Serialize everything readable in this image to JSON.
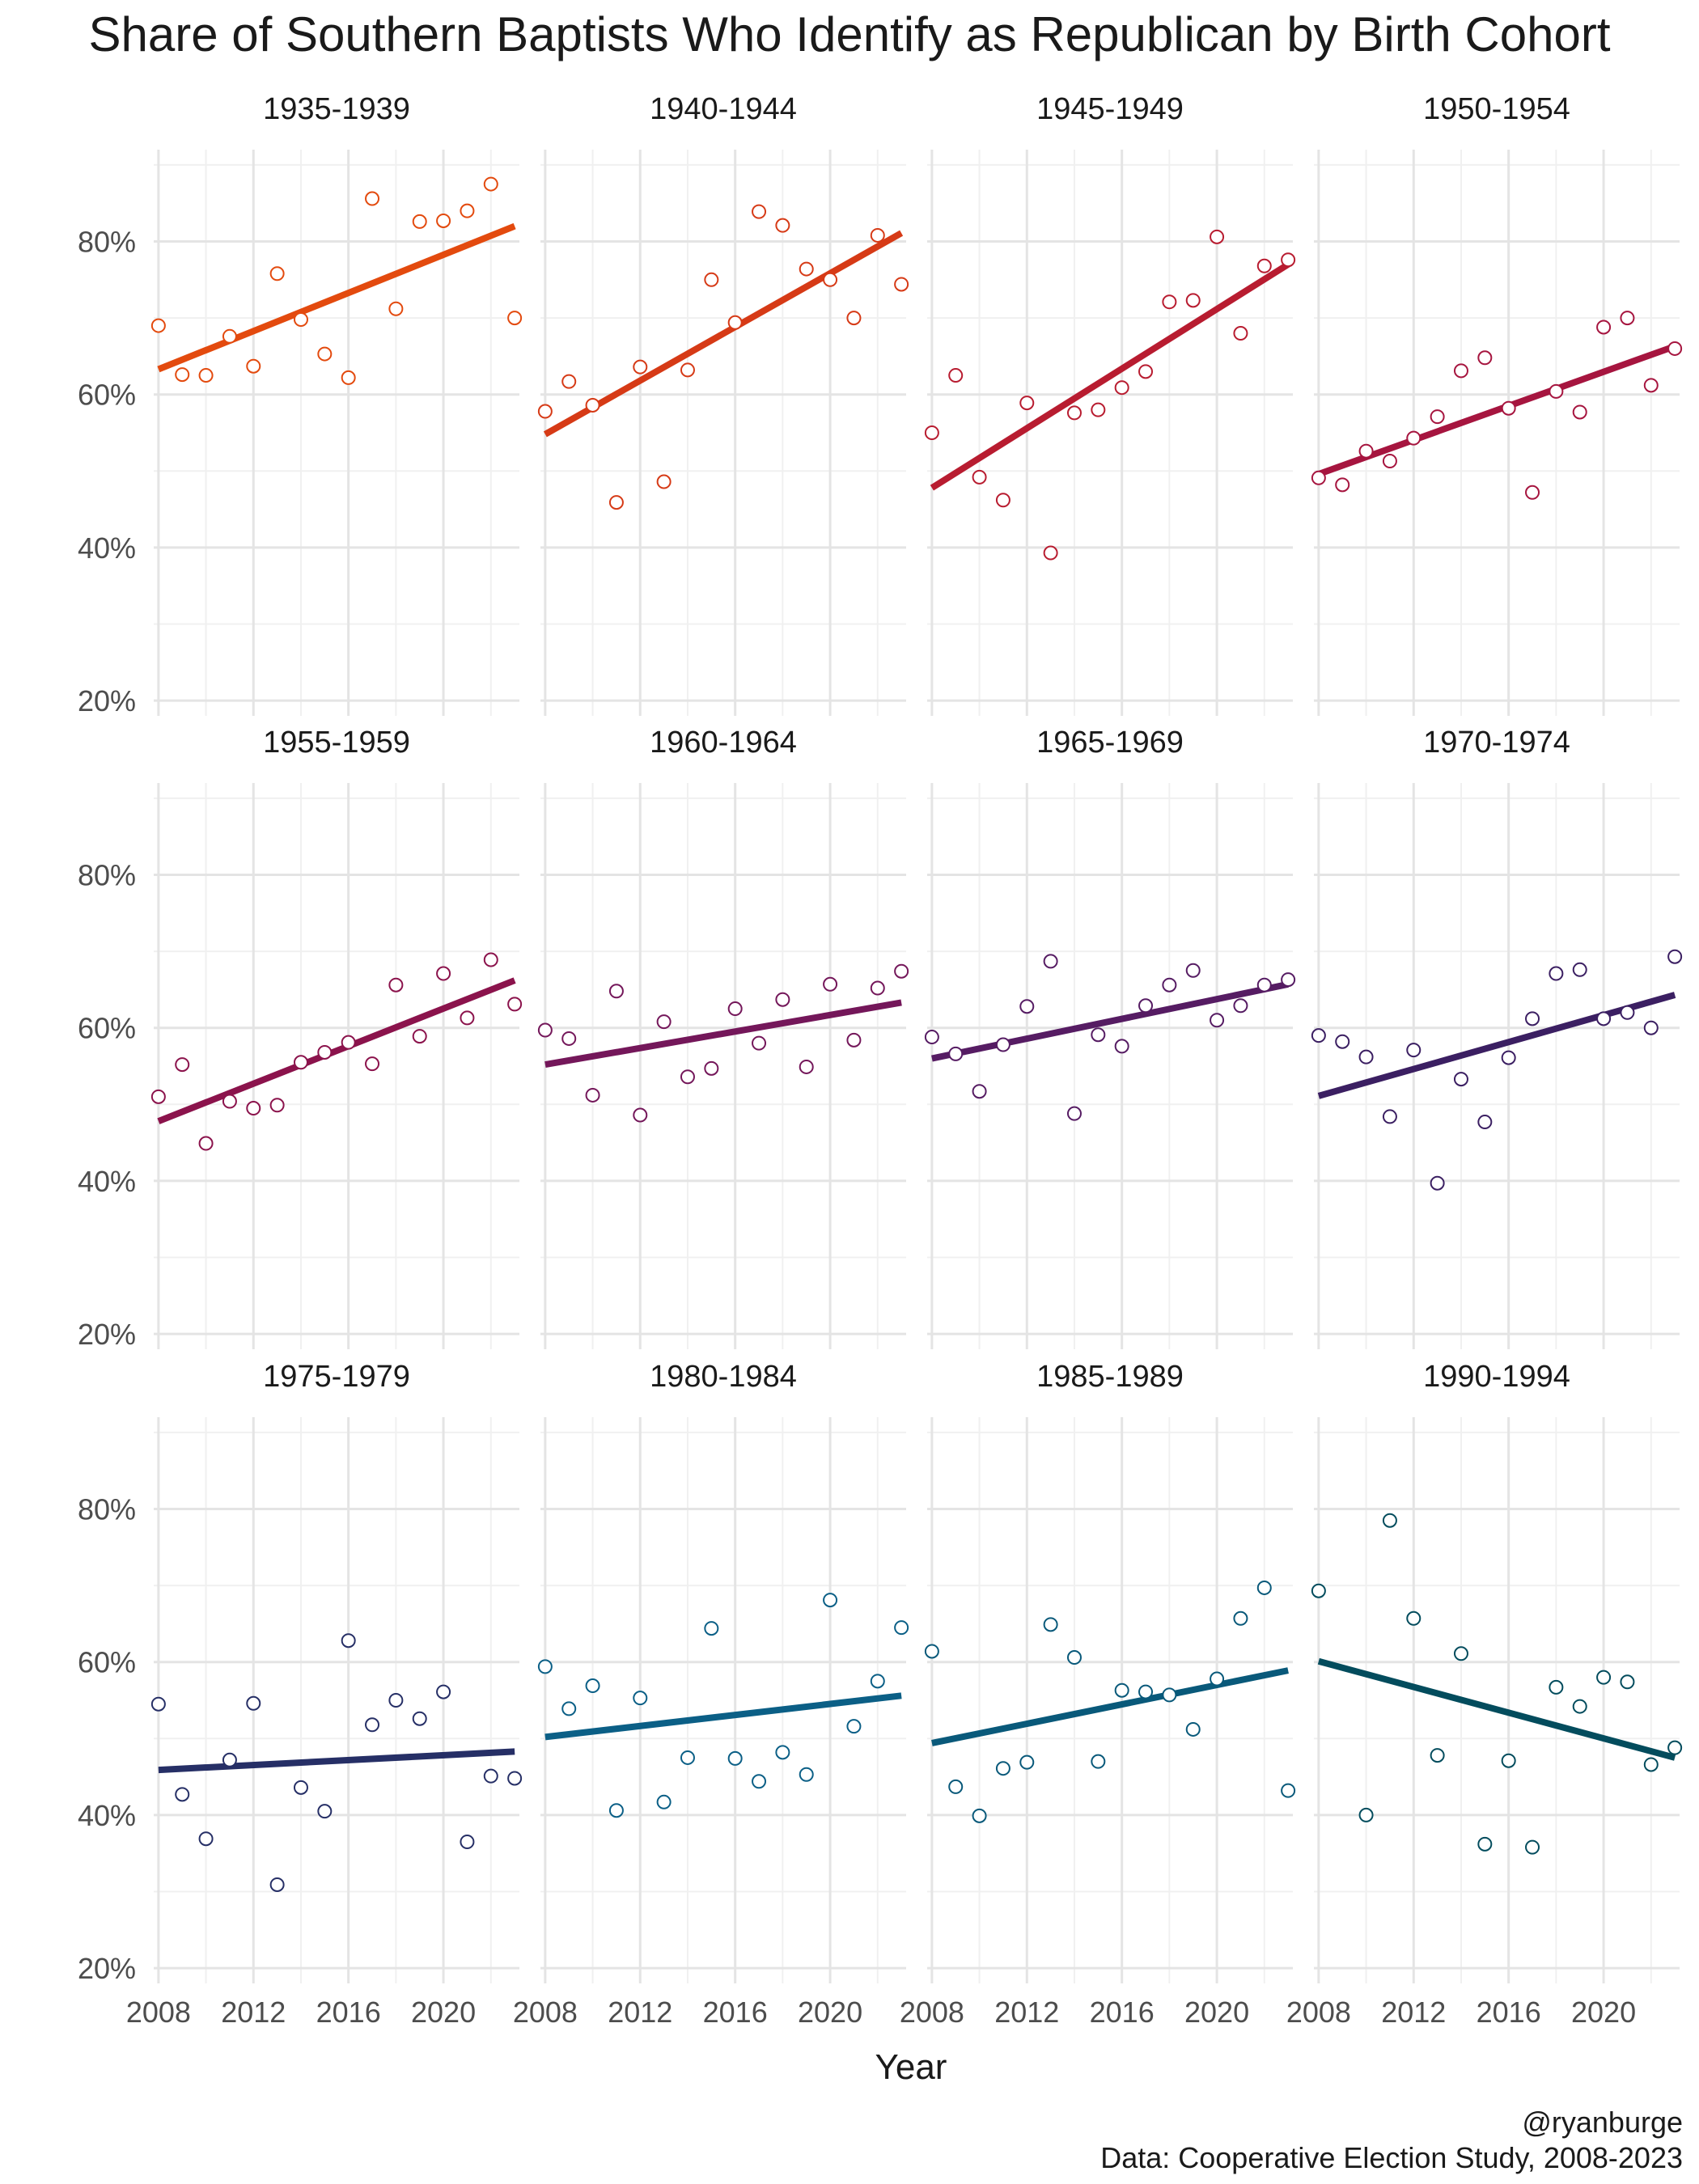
{
  "chart_data": {
    "type": "scatter",
    "title": "Share of Southern Baptists Who Identify as Republican by Birth Cohort",
    "xlabel": "Year",
    "ylabel": "",
    "x": [
      2008,
      2009,
      2010,
      2011,
      2012,
      2013,
      2014,
      2015,
      2016,
      2017,
      2018,
      2019,
      2020,
      2021,
      2022,
      2023
    ],
    "xticks": [
      2008,
      2012,
      2016,
      2020
    ],
    "xtick_labels": [
      "2008",
      "2012",
      "2016",
      "2020"
    ],
    "yticks": [
      20,
      40,
      60,
      80
    ],
    "ytick_labels": [
      "20%",
      "40%",
      "60%",
      "80%"
    ],
    "ylim": [
      18,
      92
    ],
    "xlim": [
      2007.8,
      2023.2
    ],
    "trend": "linear fit per cohort",
    "panels": [
      {
        "name": "1935-1939",
        "color": "#e34a0e",
        "values": [
          69.0,
          62.6,
          62.5,
          67.6,
          63.7,
          75.8,
          69.8,
          65.3,
          62.2,
          85.6,
          71.2,
          82.6,
          82.7,
          84.0,
          87.5,
          70.0
        ],
        "fit": [
          63.3,
          82.0
        ]
      },
      {
        "name": "1940-1944",
        "color": "#d63a16",
        "values": [
          57.8,
          61.7,
          58.6,
          45.9,
          63.6,
          48.6,
          63.2,
          75.0,
          69.4,
          83.9,
          82.1,
          76.4,
          75.0,
          70.0,
          80.8,
          74.4
        ],
        "fit": [
          54.8,
          81.1
        ]
      },
      {
        "name": "1945-1949",
        "color": "#b81c30",
        "values": [
          55.0,
          62.5,
          49.2,
          46.2,
          58.9,
          39.3,
          57.6,
          58.0,
          60.9,
          63.0,
          72.1,
          72.3,
          80.6,
          68.0,
          76.8,
          77.6
        ],
        "fit": [
          47.8,
          77.0
        ]
      },
      {
        "name": "1950-1954",
        "color": "#a6153f",
        "values": [
          49.1,
          48.2,
          52.6,
          51.3,
          54.3,
          57.1,
          63.1,
          64.8,
          58.2,
          47.2,
          60.4,
          57.7,
          68.8,
          70.0,
          61.2,
          66.0
        ],
        "fit": [
          49.6,
          66.3
        ]
      },
      {
        "name": "1955-1959",
        "color": "#8b134c",
        "values": [
          51.0,
          55.2,
          44.9,
          50.4,
          49.5,
          49.9,
          55.5,
          56.8,
          58.1,
          55.3,
          65.6,
          58.9,
          67.1,
          61.3,
          68.9,
          63.1
        ],
        "fit": [
          47.8,
          66.2
        ]
      },
      {
        "name": "1960-1964",
        "color": "#74175a",
        "values": [
          59.7,
          58.6,
          51.2,
          64.8,
          48.6,
          60.8,
          53.6,
          54.7,
          62.5,
          58.0,
          63.7,
          54.9,
          65.7,
          58.4,
          65.2,
          67.4
        ],
        "fit": [
          55.2,
          63.3
        ]
      },
      {
        "name": "1965-1969",
        "color": "#561c63",
        "values": [
          58.8,
          56.6,
          51.7,
          57.8,
          62.8,
          68.7,
          48.8,
          59.1,
          57.6,
          62.9,
          65.6,
          67.5,
          61.0,
          62.9,
          65.6,
          66.3
        ],
        "fit": [
          56.0,
          65.7
        ]
      },
      {
        "name": "1970-1974",
        "color": "#3b1f62",
        "values": [
          59.0,
          58.2,
          56.2,
          48.4,
          57.1,
          39.7,
          53.3,
          47.7,
          56.1,
          61.2,
          67.1,
          67.6,
          61.2,
          62.0,
          60.0,
          69.3
        ],
        "fit": [
          51.1,
          64.3
        ]
      },
      {
        "name": "1975-1979",
        "color": "#262f66",
        "values": [
          54.5,
          42.7,
          36.9,
          47.2,
          54.6,
          30.9,
          43.6,
          40.5,
          62.8,
          51.8,
          55.0,
          52.6,
          56.1,
          36.5,
          45.1,
          44.8
        ],
        "fit": [
          45.9,
          48.3
        ]
      },
      {
        "name": "1980-1984",
        "color": "#0b5f86",
        "values": [
          59.4,
          53.9,
          56.9,
          40.6,
          55.3,
          41.7,
          47.5,
          64.4,
          47.4,
          44.4,
          48.2,
          45.3,
          68.1,
          51.6,
          57.5,
          64.5
        ],
        "fit": [
          50.2,
          55.6
        ]
      },
      {
        "name": "1985-1989",
        "color": "#09597a",
        "values": [
          61.4,
          43.7,
          39.9,
          46.1,
          46.9,
          64.9,
          60.6,
          47.0,
          56.3,
          56.1,
          55.7,
          51.2,
          57.8,
          65.7,
          69.7,
          43.2
        ],
        "fit": [
          49.4,
          58.9
        ]
      },
      {
        "name": "1990-1994",
        "color": "#034c5d",
        "values": [
          69.3,
          null,
          40.0,
          78.5,
          65.7,
          47.8,
          61.1,
          36.2,
          47.1,
          35.8,
          56.7,
          54.2,
          58.0,
          57.4,
          46.6,
          48.8
        ],
        "fit": [
          60.1,
          47.5
        ]
      }
    ]
  },
  "caption": {
    "handle": "@ryanburge",
    "source": "Data: Cooperative Election Study, 2008-2023"
  }
}
